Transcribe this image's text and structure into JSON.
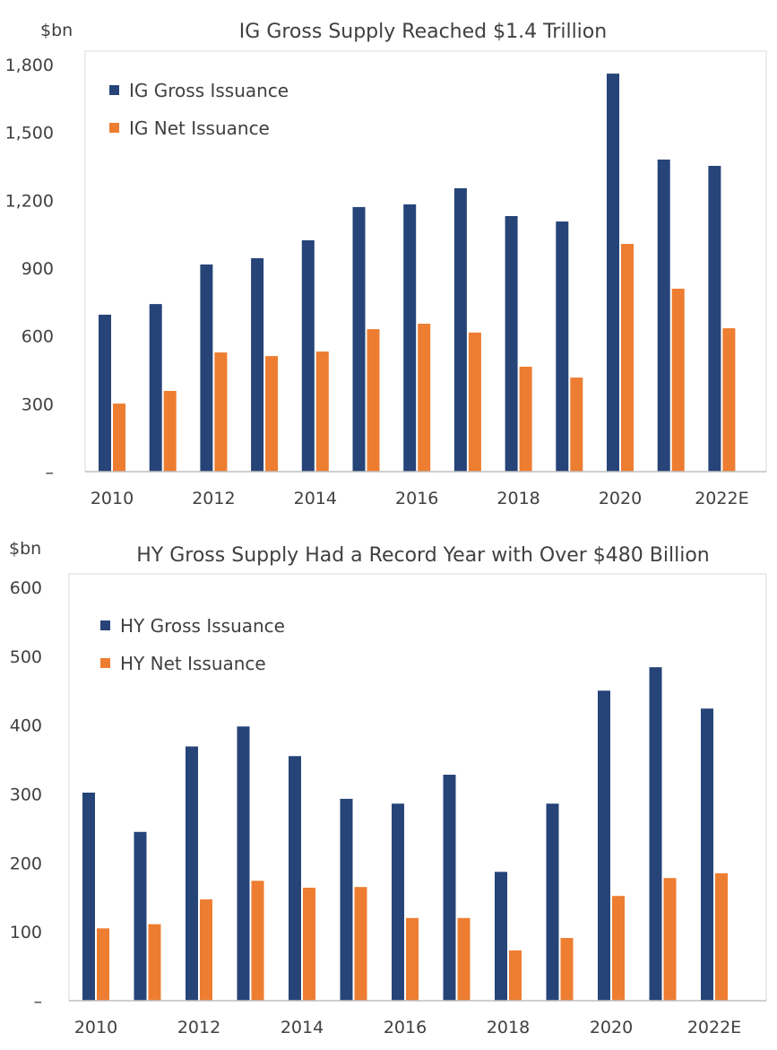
{
  "colors": {
    "gross": "#264478",
    "net": "#ED7D31",
    "axis": "#bfbfbf",
    "text": "#404040"
  },
  "chart_data": [
    {
      "type": "bar",
      "title": "IG Gross Supply Reached $1.4 Trillion",
      "ylabel": "$bn",
      "ylim": [
        0,
        1800
      ],
      "yticks": [
        0,
        300,
        600,
        900,
        1200,
        1500,
        1800
      ],
      "ytick_labels": [
        "–",
        "300",
        "600",
        "900",
        "1,200",
        "1,500",
        "1,800"
      ],
      "categories": [
        "2010",
        "2011",
        "2012",
        "2013",
        "2014",
        "2015",
        "2016",
        "2017",
        "2018",
        "2019",
        "2020",
        "2021",
        "2022E"
      ],
      "xtick_labels": [
        "2010",
        "",
        "2012",
        "",
        "2014",
        "",
        "2016",
        "",
        "2018",
        "",
        "2020",
        "",
        "2022E"
      ],
      "legend_position": "top-left",
      "grid": false,
      "series": [
        {
          "name": "IG Gross Issuance",
          "values": [
            694,
            741,
            916,
            944,
            1023,
            1170,
            1182,
            1253,
            1130,
            1106,
            1760,
            1380,
            1352
          ]
        },
        {
          "name": "IG Net Issuance",
          "values": [
            301,
            357,
            527,
            511,
            531,
            630,
            654,
            615,
            464,
            416,
            1007,
            809,
            634
          ]
        }
      ]
    },
    {
      "type": "bar",
      "title": "HY Gross Supply Had a Record Year with Over $480 Billion",
      "ylabel": "$bn",
      "ylim": [
        0,
        600
      ],
      "yticks": [
        0,
        100,
        200,
        300,
        400,
        500,
        600
      ],
      "ytick_labels": [
        "–",
        "100",
        "200",
        "300",
        "400",
        "500",
        "600"
      ],
      "categories": [
        "2010",
        "2011",
        "2012",
        "2013",
        "2014",
        "2015",
        "2016",
        "2017",
        "2018",
        "2019",
        "2020",
        "2021",
        "2022E"
      ],
      "xtick_labels": [
        "2010",
        "",
        "2012",
        "",
        "2014",
        "",
        "2016",
        "",
        "2018",
        "",
        "2020",
        "",
        "2022E"
      ],
      "legend_position": "top-left",
      "grid": false,
      "series": [
        {
          "name": "HY Gross Issuance",
          "values": [
            302,
            245,
            369,
            398,
            355,
            293,
            286,
            328,
            187,
            286,
            450,
            484,
            424
          ]
        },
        {
          "name": "HY Net Issuance",
          "values": [
            105,
            111,
            147,
            174,
            164,
            165,
            120,
            120,
            73,
            91,
            152,
            178,
            185
          ]
        }
      ]
    }
  ]
}
